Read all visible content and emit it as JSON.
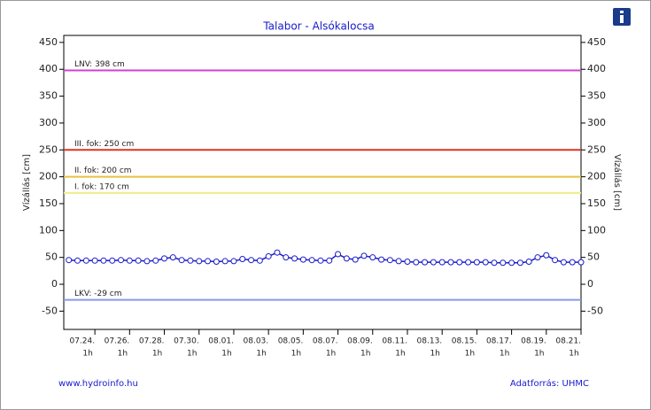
{
  "chart_data": {
    "type": "line",
    "title": "Talabor - Alsókalocsa",
    "y_label": "Vízállás [cm]",
    "footer_left": "www.hydroinfo.hu",
    "footer_right": "Adatforrás: UHMC",
    "ylim": [
      -84,
      463
    ],
    "yticks": [
      -50,
      0,
      50,
      100,
      150,
      200,
      250,
      300,
      350,
      400,
      450
    ],
    "xlim": [
      "07.22. 6h",
      "08.21. 1h"
    ],
    "xticks": [
      "07.24.",
      "07.26.",
      "07.28.",
      "07.30.",
      "08.01.",
      "08.03.",
      "08.05.",
      "08.07.",
      "08.09.",
      "08.11.",
      "08.13.",
      "08.15.",
      "08.17.",
      "08.19.",
      "08.21."
    ],
    "xtick_time": "1h",
    "hlines": [
      {
        "label": "LNV: 398 cm",
        "value": 398,
        "color": "#cc44cc"
      },
      {
        "label": "III. fok: 250 cm",
        "value": 250,
        "color": "#dd3322"
      },
      {
        "label": "II. fok: 200 cm",
        "value": 200,
        "color": "#e8c040"
      },
      {
        "label": "I. fok: 170 cm",
        "value": 170,
        "color": "#eeee88"
      },
      {
        "label": "LKV: -29 cm",
        "value": -29,
        "color": "#8899ee"
      }
    ],
    "x": [
      "07.22. 13h",
      "07.23. 1h",
      "07.23. 13h",
      "07.24. 1h",
      "07.24. 13h",
      "07.25. 1h",
      "07.25. 13h",
      "07.26. 1h",
      "07.26. 13h",
      "07.27. 1h",
      "07.27. 13h",
      "07.28. 1h",
      "07.28. 13h",
      "07.29. 1h",
      "07.29. 13h",
      "07.30. 1h",
      "07.30. 13h",
      "07.31. 1h",
      "07.31. 13h",
      "08.01. 1h",
      "08.01. 13h",
      "08.02. 1h",
      "08.02. 13h",
      "08.03. 1h",
      "08.03. 13h",
      "08.04. 1h",
      "08.04. 13h",
      "08.05. 1h",
      "08.05. 13h",
      "08.06. 1h",
      "08.06. 13h",
      "08.07. 1h",
      "08.07. 13h",
      "08.08. 1h",
      "08.08. 13h",
      "08.09. 1h",
      "08.09. 13h",
      "08.10. 1h",
      "08.10. 13h",
      "08.11. 1h",
      "08.11. 13h",
      "08.12. 1h",
      "08.12. 13h",
      "08.13. 1h",
      "08.13. 13h",
      "08.14. 1h",
      "08.14. 13h",
      "08.15. 1h",
      "08.15. 13h",
      "08.16. 1h",
      "08.16. 13h",
      "08.17. 1h",
      "08.17. 13h",
      "08.18. 1h",
      "08.18. 13h",
      "08.19. 1h",
      "08.19. 13h",
      "08.20. 1h",
      "08.20. 13h",
      "08.21. 1h"
    ],
    "series": [
      {
        "color": "#1a1acc",
        "values": [
          45,
          44,
          44,
          44,
          44,
          44,
          45,
          44,
          44,
          43,
          44,
          48,
          50,
          45,
          44,
          43,
          43,
          42,
          43,
          43,
          47,
          45,
          44,
          52,
          59,
          50,
          48,
          46,
          45,
          44,
          44,
          56,
          48,
          46,
          53,
          50,
          46,
          45,
          43,
          42,
          41,
          41,
          41,
          41,
          41,
          41,
          41,
          41,
          41,
          40,
          40,
          40,
          40,
          42,
          50,
          54,
          45,
          41,
          41,
          41
        ]
      }
    ]
  }
}
